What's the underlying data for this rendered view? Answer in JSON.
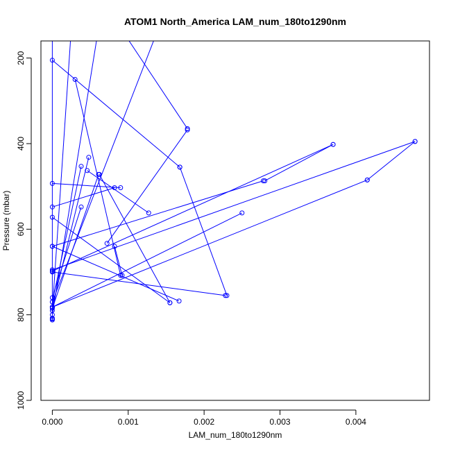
{
  "chart_data": {
    "type": "line",
    "title": "ATOM1 North_America LAM_num_180to1290nm",
    "xlabel": "LAM_num_180to1290nm",
    "ylabel": "Pressure (mbar)",
    "xlim": [
      -0.00015,
      0.00497
    ],
    "ylim": [
      1000,
      160
    ],
    "y_reversed": true,
    "xticks": [
      0.0,
      0.001,
      0.002,
      0.003,
      0.004
    ],
    "xtick_labels": [
      "0.000",
      "0.001",
      "0.002",
      "0.003",
      "0.004"
    ],
    "yticks": [
      200,
      400,
      600,
      800,
      1000
    ],
    "ytick_labels": [
      "200",
      "400",
      "600",
      "800",
      "1000"
    ],
    "grid": false,
    "legend": "none",
    "color": "#0000ff",
    "markers": "open-circle",
    "series": [
      {
        "points": [
          [
            0.00025,
            130
          ],
          [
            0.0,
            790
          ]
        ]
      },
      {
        "points": [
          [
            0.0006,
            140
          ],
          [
            0.0,
            800
          ]
        ]
      },
      {
        "points": [
          [
            0.0009,
            130
          ],
          [
            0.00178,
            365
          ]
        ]
      },
      {
        "points": [
          [
            0.0014,
            130
          ],
          [
            0.0,
            770
          ]
        ]
      },
      {
        "points": [
          [
            0.0,
            150
          ],
          [
            0.0,
            810
          ]
        ]
      },
      {
        "points": [
          [
            0.0,
            205
          ],
          [
            0.00168,
            455
          ]
        ]
      },
      {
        "points": [
          [
            0.0003,
            250
          ],
          [
            0.0009,
            708
          ]
        ]
      },
      {
        "points": [
          [
            0.00048,
            432
          ],
          [
            0.0,
            782
          ]
        ]
      },
      {
        "points": [
          [
            0.00038,
            453
          ],
          [
            0.0,
            770
          ]
        ]
      },
      {
        "points": [
          [
            0.00061,
            472
          ],
          [
            0.0,
            785
          ]
        ]
      },
      {
        "points": [
          [
            0.00062,
            472
          ],
          [
            0.00155,
            772
          ]
        ]
      },
      {
        "points": [
          [
            0.00038,
            548
          ],
          [
            0.0,
            760
          ]
        ]
      },
      {
        "points": [
          [
            0.00082,
            503
          ],
          [
            0.0,
            548
          ]
        ]
      },
      {
        "points": [
          [
            0.0009,
            503
          ],
          [
            0.0,
            493
          ]
        ]
      },
      {
        "points": [
          [
            0.00046,
            463
          ],
          [
            0.00127,
            562
          ]
        ]
      },
      {
        "points": [
          [
            0.00072,
            633
          ],
          [
            0.00178,
            368
          ]
        ]
      },
      {
        "points": [
          [
            0.00168,
            455
          ],
          [
            0.0023,
            755
          ]
        ]
      },
      {
        "points": [
          [
            0.0,
            572
          ],
          [
            0.00155,
            772
          ]
        ]
      },
      {
        "points": [
          [
            0.0,
            640
          ],
          [
            0.00167,
            768
          ]
        ]
      },
      {
        "points": [
          [
            0.0,
            640
          ],
          [
            0.00278,
            487
          ]
        ]
      },
      {
        "points": [
          [
            0.0028,
            487
          ],
          [
            0.0037,
            402
          ]
        ]
      },
      {
        "points": [
          [
            0.0037,
            402
          ],
          [
            0.0,
            698
          ]
        ]
      },
      {
        "points": [
          [
            0.00478,
            395
          ],
          [
            0.0,
            695
          ]
        ]
      },
      {
        "points": [
          [
            0.00478,
            395
          ],
          [
            0.00415,
            485
          ]
        ]
      },
      {
        "points": [
          [
            0.00415,
            485
          ],
          [
            0.0,
            782
          ]
        ]
      },
      {
        "points": [
          [
            0.0025,
            562
          ],
          [
            0.0,
            782
          ]
        ]
      },
      {
        "points": [
          [
            0.0,
            700
          ],
          [
            0.00228,
            755
          ]
        ]
      },
      {
        "points": [
          [
            0.00092,
            708
          ],
          [
            0.00082,
            640
          ]
        ]
      },
      {
        "points": [
          [
            0.0,
            812
          ],
          [
            0.0,
            808
          ]
        ]
      }
    ]
  }
}
